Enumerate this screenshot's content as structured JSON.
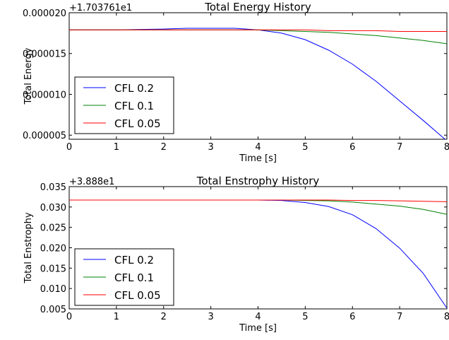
{
  "colors": {
    "CFL 0.2": "#0000ff",
    "CFL 0.1": "#008000",
    "CFL 0.05": "#ff0000"
  },
  "chart_data": [
    {
      "type": "line",
      "title": "Total Energy History",
      "xlabel": "Time [s]",
      "ylabel": "Total Energy",
      "offset_text": "+1.703761e1",
      "xlim": [
        0,
        8
      ],
      "ylim": [
        4.5e-06,
        2e-05
      ],
      "xticks": [
        0,
        1,
        2,
        3,
        4,
        5,
        6,
        7,
        8
      ],
      "xtick_labels": [
        "0",
        "1",
        "2",
        "3",
        "4",
        "5",
        "6",
        "7",
        "8"
      ],
      "yticks": [
        5e-06,
        1e-05,
        1.5e-05,
        2e-05
      ],
      "ytick_labels": [
        "0.000005",
        "0.000010",
        "0.000015",
        "0.000020"
      ],
      "legend": "lower-left",
      "grid": false,
      "x": [
        0,
        0.5,
        1,
        1.5,
        2,
        2.5,
        3,
        3.5,
        4,
        4.5,
        5,
        5.5,
        6,
        6.5,
        7,
        7.5,
        8
      ],
      "series": [
        {
          "name": "CFL 0.2",
          "values": [
            1.79e-05,
            1.79e-05,
            1.79e-05,
            1.795e-05,
            1.8e-05,
            1.81e-05,
            1.81e-05,
            1.81e-05,
            1.79e-05,
            1.75e-05,
            1.67e-05,
            1.54e-05,
            1.37e-05,
            1.16e-05,
            9.2e-06,
            6.8e-06,
            4.3e-06
          ]
        },
        {
          "name": "CFL 0.1",
          "values": [
            1.79e-05,
            1.79e-05,
            1.79e-05,
            1.79e-05,
            1.79e-05,
            1.79e-05,
            1.79e-05,
            1.79e-05,
            1.79e-05,
            1.78e-05,
            1.77e-05,
            1.76e-05,
            1.74e-05,
            1.72e-05,
            1.69e-05,
            1.66e-05,
            1.62e-05
          ]
        },
        {
          "name": "CFL 0.05",
          "values": [
            1.79e-05,
            1.79e-05,
            1.79e-05,
            1.79e-05,
            1.79e-05,
            1.79e-05,
            1.79e-05,
            1.79e-05,
            1.79e-05,
            1.79e-05,
            1.79e-05,
            1.78e-05,
            1.78e-05,
            1.78e-05,
            1.77e-05,
            1.77e-05,
            1.77e-05
          ]
        }
      ]
    },
    {
      "type": "line",
      "title": "Total Enstrophy History",
      "xlabel": "Time [s]",
      "ylabel": "Total Enstrophy",
      "offset_text": "+3.888e1",
      "xlim": [
        0,
        8
      ],
      "ylim": [
        0.005,
        0.035
      ],
      "xticks": [
        0,
        1,
        2,
        3,
        4,
        5,
        6,
        7,
        8
      ],
      "xtick_labels": [
        "0",
        "1",
        "2",
        "3",
        "4",
        "5",
        "6",
        "7",
        "8"
      ],
      "yticks": [
        0.005,
        0.01,
        0.015,
        0.02,
        0.025,
        0.03,
        0.035
      ],
      "ytick_labels": [
        "0.005",
        "0.010",
        "0.015",
        "0.020",
        "0.025",
        "0.030",
        "0.035"
      ],
      "legend": "lower-left",
      "grid": false,
      "x": [
        0,
        0.5,
        1,
        1.5,
        2,
        2.5,
        3,
        3.5,
        4,
        4.5,
        5,
        5.5,
        6,
        6.5,
        7,
        7.5,
        8
      ],
      "series": [
        {
          "name": "CFL 0.2",
          "values": [
            0.0317,
            0.0317,
            0.0317,
            0.0317,
            0.0317,
            0.0317,
            0.0317,
            0.0317,
            0.0317,
            0.0316,
            0.0311,
            0.0301,
            0.0281,
            0.0247,
            0.0199,
            0.0137,
            0.0052
          ]
        },
        {
          "name": "CFL 0.1",
          "values": [
            0.0317,
            0.0317,
            0.0317,
            0.0317,
            0.0317,
            0.0317,
            0.0317,
            0.0317,
            0.0317,
            0.0317,
            0.0316,
            0.0315,
            0.0312,
            0.0307,
            0.0302,
            0.0294,
            0.0282
          ]
        },
        {
          "name": "CFL 0.05",
          "values": [
            0.0317,
            0.0317,
            0.0317,
            0.0317,
            0.0317,
            0.0317,
            0.0317,
            0.0317,
            0.0317,
            0.0317,
            0.0317,
            0.0317,
            0.0316,
            0.0316,
            0.0315,
            0.0314,
            0.0313
          ]
        }
      ]
    }
  ]
}
